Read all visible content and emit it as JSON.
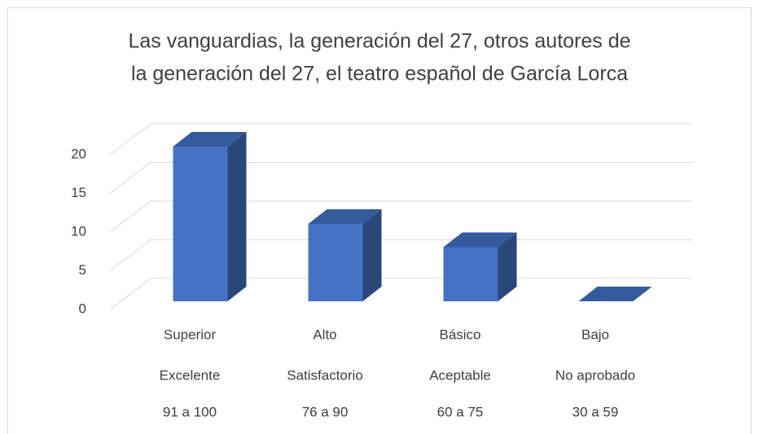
{
  "chart_data": {
    "type": "bar3d",
    "title": [
      "Las vanguardias, la generación del 27, otros autores de",
      "la generación del 27, el teatro español de García Lorca"
    ],
    "categories": [
      [
        "Superior",
        "Excelente",
        "91  a 100"
      ],
      [
        "Alto",
        "Satisfactorio",
        "76  a  90"
      ],
      [
        "Básico",
        "Aceptable",
        "60  a  75"
      ],
      [
        "Bajo",
        "No aprobado",
        "30  a  59"
      ]
    ],
    "values": [
      20,
      10,
      7,
      0
    ],
    "color": "#4472c4",
    "ylim": [
      0,
      20
    ],
    "yticks": [
      0,
      5,
      10,
      15,
      20
    ],
    "grid": true
  }
}
